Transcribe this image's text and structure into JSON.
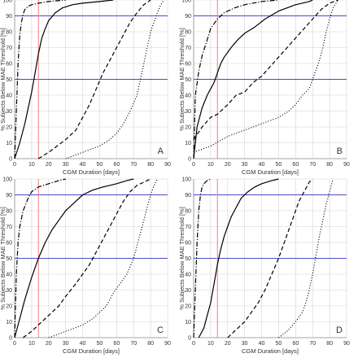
{
  "colors": {
    "grid": "#d4d4d4",
    "axis": "#8c8c8c",
    "threshold": "#4a4acc",
    "marker": "#f08080",
    "curve": "#000000"
  },
  "chart_data": [
    {
      "type": "line",
      "panel_label": "A",
      "xlabel": "CGM Duration [days]",
      "ylabel": "% Subjects Below MAE Threshold [%]",
      "xlim": [
        0,
        90
      ],
      "ylim": [
        0,
        100
      ],
      "xticks": [
        0,
        10,
        20,
        30,
        40,
        50,
        60,
        70,
        80,
        90
      ],
      "yticks": [
        0,
        10,
        20,
        30,
        40,
        50,
        60,
        70,
        80,
        90,
        100
      ],
      "grid": true,
      "reference_lines": {
        "y": [
          50,
          90
        ],
        "x": [
          14
        ]
      },
      "series": [
        {
          "style": "dashdot",
          "x": [
            0,
            1,
            2,
            3,
            4,
            5,
            6,
            8,
            10,
            14,
            20,
            30
          ],
          "y": [
            0,
            30,
            60,
            78,
            86,
            91,
            94,
            96,
            97,
            98,
            99,
            100
          ]
        },
        {
          "style": "solid",
          "x": [
            0,
            3,
            6,
            8,
            10,
            12,
            14,
            16,
            18,
            20,
            24,
            28,
            34,
            40,
            50,
            58
          ],
          "y": [
            0,
            10,
            22,
            32,
            42,
            54,
            66,
            76,
            82,
            87,
            92,
            95,
            97,
            98,
            99,
            100
          ]
        },
        {
          "style": "dashed",
          "x": [
            14,
            20,
            30,
            36,
            40,
            44,
            48,
            52,
            56,
            60,
            64,
            68,
            72,
            76,
            80
          ],
          "y": [
            0,
            4,
            12,
            18,
            26,
            34,
            44,
            54,
            62,
            70,
            78,
            86,
            92,
            97,
            100
          ]
        },
        {
          "style": "dotted",
          "x": [
            30,
            40,
            50,
            56,
            60,
            64,
            68,
            72,
            74,
            76,
            78,
            80,
            84,
            86,
            88
          ],
          "y": [
            0,
            4,
            8,
            12,
            16,
            22,
            30,
            40,
            50,
            60,
            70,
            80,
            92,
            97,
            100
          ]
        }
      ]
    },
    {
      "type": "line",
      "panel_label": "B",
      "xlabel": "CGM Duration [days]",
      "ylabel": "% Subjects Below MAE Threshold [%]",
      "xlim": [
        0,
        90
      ],
      "ylim": [
        0,
        100
      ],
      "xticks": [
        0,
        10,
        20,
        30,
        40,
        50,
        60,
        70,
        80,
        90
      ],
      "yticks": [
        0,
        10,
        20,
        30,
        40,
        50,
        60,
        70,
        80,
        90,
        100
      ],
      "grid": true,
      "reference_lines": {
        "y": [
          50,
          90
        ],
        "x": [
          14
        ]
      },
      "series": [
        {
          "style": "dashdot",
          "x": [
            0,
            1,
            3,
            5,
            8,
            10,
            14,
            18,
            24,
            30,
            40,
            50
          ],
          "y": [
            0,
            40,
            55,
            65,
            75,
            82,
            88,
            92,
            95,
            97,
            99,
            100
          ]
        },
        {
          "style": "solid",
          "x": [
            0,
            2,
            5,
            8,
            10,
            12,
            14,
            16,
            18,
            22,
            26,
            30,
            36,
            42,
            50,
            60,
            68,
            70
          ],
          "y": [
            0,
            20,
            32,
            40,
            44,
            48,
            54,
            60,
            64,
            70,
            75,
            79,
            83,
            88,
            93,
            97,
            99,
            100
          ]
        },
        {
          "style": "dashed",
          "x": [
            0,
            5,
            10,
            14,
            20,
            25,
            30,
            35,
            40,
            45,
            50,
            55,
            60,
            65,
            70,
            75,
            80,
            85
          ],
          "y": [
            12,
            20,
            26,
            28,
            34,
            40,
            42,
            48,
            52,
            58,
            64,
            70,
            76,
            82,
            88,
            94,
            98,
            100
          ]
        },
        {
          "style": "dotted",
          "x": [
            0,
            10,
            20,
            30,
            40,
            50,
            56,
            60,
            64,
            68,
            70,
            72,
            74,
            76,
            78,
            80,
            82,
            85
          ],
          "y": [
            4,
            8,
            14,
            18,
            22,
            26,
            30,
            34,
            40,
            44,
            50,
            56,
            62,
            70,
            80,
            88,
            95,
            100
          ]
        }
      ]
    },
    {
      "type": "line",
      "panel_label": "C",
      "xlabel": "CGM Duration [days]",
      "ylabel": "% Subjects Below MAE Threshold [%]",
      "xlim": [
        0,
        90
      ],
      "ylim": [
        0,
        100
      ],
      "xticks": [
        0,
        10,
        20,
        30,
        40,
        50,
        60,
        70,
        80,
        90
      ],
      "yticks": [
        0,
        10,
        20,
        30,
        40,
        50,
        60,
        70,
        80,
        90,
        100
      ],
      "grid": true,
      "reference_lines": {
        "y": [
          50,
          90
        ],
        "x": [
          14
        ]
      },
      "series": [
        {
          "style": "dashdot",
          "x": [
            0,
            1,
            2,
            3,
            5,
            8,
            10,
            14,
            20,
            26,
            30
          ],
          "y": [
            0,
            40,
            60,
            70,
            80,
            88,
            92,
            95,
            97,
            99,
            100
          ]
        },
        {
          "style": "solid",
          "x": [
            0,
            3,
            6,
            10,
            14,
            18,
            22,
            26,
            30,
            36,
            40,
            46,
            52,
            60,
            66,
            70
          ],
          "y": [
            0,
            12,
            24,
            38,
            50,
            60,
            68,
            74,
            80,
            86,
            90,
            93,
            95,
            97,
            99,
            100
          ]
        },
        {
          "style": "dashed",
          "x": [
            5,
            10,
            16,
            20,
            26,
            30,
            36,
            40,
            44,
            48,
            52,
            56,
            60,
            64,
            68,
            72,
            76,
            80
          ],
          "y": [
            0,
            4,
            10,
            14,
            20,
            26,
            34,
            40,
            46,
            54,
            62,
            70,
            78,
            86,
            92,
            96,
            98,
            100
          ]
        },
        {
          "style": "dotted",
          "x": [
            20,
            30,
            40,
            46,
            50,
            54,
            58,
            62,
            66,
            70,
            72,
            74,
            76,
            78,
            80,
            82,
            84
          ],
          "y": [
            0,
            4,
            8,
            12,
            16,
            20,
            28,
            34,
            40,
            50,
            58,
            66,
            74,
            82,
            90,
            96,
            100
          ]
        }
      ]
    },
    {
      "type": "line",
      "panel_label": "D",
      "xlabel": "CGM Duration [days]",
      "ylabel": "% Subjects Below MAE Threshold [%]",
      "xlim": [
        0,
        90
      ],
      "ylim": [
        0,
        100
      ],
      "xticks": [
        0,
        10,
        20,
        30,
        40,
        50,
        60,
        70,
        80,
        90
      ],
      "yticks": [
        0,
        10,
        20,
        30,
        40,
        50,
        60,
        70,
        80,
        90,
        100
      ],
      "grid": true,
      "reference_lines": {
        "y": [
          50,
          90
        ],
        "x": [
          14
        ]
      },
      "series": [
        {
          "style": "dashdot",
          "x": [
            0,
            1,
            2,
            3,
            4,
            5,
            6,
            8,
            10
          ],
          "y": [
            0,
            30,
            60,
            80,
            90,
            95,
            97,
            99,
            100
          ]
        },
        {
          "style": "solid",
          "x": [
            3,
            6,
            8,
            10,
            12,
            14,
            16,
            18,
            20,
            22,
            24,
            26,
            28,
            32,
            36,
            40,
            46,
            50
          ],
          "y": [
            0,
            6,
            14,
            22,
            34,
            46,
            56,
            64,
            70,
            76,
            80,
            84,
            88,
            92,
            95,
            97,
            99,
            100
          ]
        },
        {
          "style": "dashed",
          "x": [
            20,
            24,
            30,
            34,
            38,
            42,
            46,
            50,
            52,
            54,
            56,
            58,
            60,
            62,
            64,
            66,
            68,
            70
          ],
          "y": [
            0,
            4,
            10,
            16,
            22,
            30,
            40,
            50,
            56,
            62,
            68,
            74,
            80,
            86,
            90,
            94,
            98,
            100
          ]
        },
        {
          "style": "dotted",
          "x": [
            50,
            55,
            60,
            64,
            66,
            68,
            70,
            72,
            74,
            76,
            78,
            80,
            82
          ],
          "y": [
            0,
            4,
            10,
            16,
            22,
            30,
            40,
            52,
            64,
            74,
            84,
            92,
            100
          ]
        }
      ]
    }
  ]
}
